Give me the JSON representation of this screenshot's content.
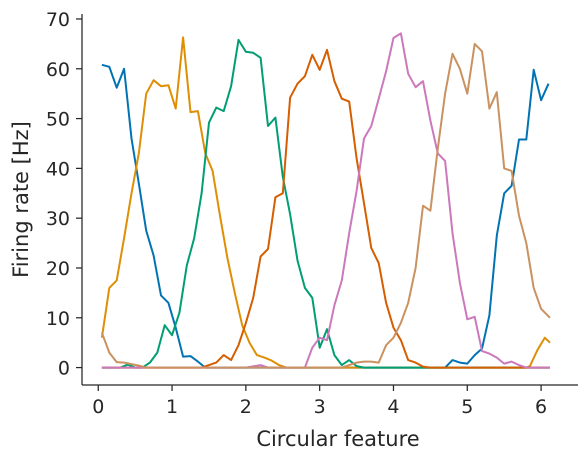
{
  "chart_data": {
    "type": "line",
    "title": "",
    "xlabel": "Circular feature",
    "ylabel": "Firing rate [Hz]",
    "xlim": [
      -0.22,
      6.5
    ],
    "ylim": [
      -3.5,
      71
    ],
    "xticks": [
      0,
      1,
      2,
      3,
      4,
      5,
      6
    ],
    "yticks": [
      0,
      10,
      20,
      30,
      40,
      50,
      60,
      70
    ],
    "grid": false,
    "legend": "none",
    "series": [
      {
        "color": "#0173b2",
        "points": [
          [
            0.05,
            60.8
          ],
          [
            0.15,
            60.4
          ],
          [
            0.25,
            56.2
          ],
          [
            0.35,
            60
          ],
          [
            0.45,
            46
          ],
          [
            0.55,
            37
          ],
          [
            0.65,
            27.5
          ],
          [
            0.75,
            22.5
          ],
          [
            0.85,
            14.5
          ],
          [
            0.95,
            13
          ],
          [
            1.05,
            8
          ],
          [
            1.15,
            2.2
          ],
          [
            1.25,
            2.3
          ],
          [
            1.35,
            1.2
          ],
          [
            1.45,
            0
          ],
          [
            1.6,
            0
          ],
          [
            2.0,
            0
          ],
          [
            3.0,
            0
          ],
          [
            4.0,
            0
          ],
          [
            4.7,
            0
          ],
          [
            4.8,
            1.5
          ],
          [
            4.9,
            1
          ],
          [
            5.0,
            0.8
          ],
          [
            5.1,
            2.5
          ],
          [
            5.2,
            3.8
          ],
          [
            5.3,
            10.5
          ],
          [
            5.4,
            26.5
          ],
          [
            5.5,
            35
          ],
          [
            5.6,
            36.5
          ],
          [
            5.7,
            45.8
          ],
          [
            5.8,
            45.8
          ],
          [
            5.9,
            59.8
          ],
          [
            6.0,
            53.7
          ],
          [
            6.1,
            57
          ]
        ]
      },
      {
        "color": "#de8f05",
        "points": [
          [
            0.05,
            6
          ],
          [
            0.15,
            16
          ],
          [
            0.25,
            17.5
          ],
          [
            0.35,
            26
          ],
          [
            0.45,
            35
          ],
          [
            0.55,
            43
          ],
          [
            0.65,
            55
          ],
          [
            0.75,
            57.7
          ],
          [
            0.85,
            56.5
          ],
          [
            0.95,
            56.7
          ],
          [
            1.05,
            52
          ],
          [
            1.15,
            66.3
          ],
          [
            1.25,
            51.3
          ],
          [
            1.35,
            51.5
          ],
          [
            1.45,
            43
          ],
          [
            1.55,
            39.5
          ],
          [
            1.65,
            30.5
          ],
          [
            1.75,
            22
          ],
          [
            1.85,
            15
          ],
          [
            1.95,
            8.5
          ],
          [
            2.05,
            5
          ],
          [
            2.15,
            2.5
          ],
          [
            2.25,
            2
          ],
          [
            2.35,
            1.4
          ],
          [
            2.45,
            0.5
          ],
          [
            2.55,
            0
          ],
          [
            3.0,
            0
          ],
          [
            4.0,
            0
          ],
          [
            5.0,
            0
          ],
          [
            5.8,
            0
          ],
          [
            5.85,
            0.3
          ],
          [
            5.95,
            3.5
          ],
          [
            6.05,
            6
          ],
          [
            6.12,
            5
          ]
        ]
      },
      {
        "color": "#029e73",
        "points": [
          [
            0.05,
            0
          ],
          [
            0.3,
            0
          ],
          [
            0.4,
            0.6
          ],
          [
            0.5,
            0
          ],
          [
            0.6,
            0
          ],
          [
            0.7,
            1
          ],
          [
            0.8,
            3
          ],
          [
            0.9,
            8.5
          ],
          [
            1.0,
            6.5
          ],
          [
            1.1,
            11
          ],
          [
            1.2,
            20.5
          ],
          [
            1.3,
            26
          ],
          [
            1.4,
            35
          ],
          [
            1.5,
            49.2
          ],
          [
            1.6,
            52.2
          ],
          [
            1.7,
            51.5
          ],
          [
            1.8,
            56.5
          ],
          [
            1.9,
            65.8
          ],
          [
            2.0,
            63.4
          ],
          [
            2.1,
            63.2
          ],
          [
            2.2,
            62.2
          ],
          [
            2.3,
            48.5
          ],
          [
            2.4,
            50.2
          ],
          [
            2.5,
            38.3
          ],
          [
            2.6,
            30.8
          ],
          [
            2.7,
            21.5
          ],
          [
            2.8,
            16
          ],
          [
            2.9,
            14
          ],
          [
            3.0,
            4
          ],
          [
            3.1,
            7.7
          ],
          [
            3.2,
            2.5
          ],
          [
            3.3,
            0.5
          ],
          [
            3.4,
            1.5
          ],
          [
            3.5,
            0.3
          ],
          [
            3.6,
            0
          ],
          [
            4.0,
            0
          ],
          [
            5.0,
            0
          ],
          [
            6.12,
            0
          ]
        ]
      },
      {
        "color": "#d55e00",
        "points": [
          [
            0.05,
            0
          ],
          [
            1.0,
            0
          ],
          [
            1.4,
            0
          ],
          [
            1.5,
            0.5
          ],
          [
            1.6,
            1
          ],
          [
            1.7,
            2.5
          ],
          [
            1.8,
            1.5
          ],
          [
            1.9,
            4.5
          ],
          [
            2.0,
            9
          ],
          [
            2.1,
            14
          ],
          [
            2.2,
            22.3
          ],
          [
            2.3,
            23.8
          ],
          [
            2.4,
            34.2
          ],
          [
            2.5,
            35
          ],
          [
            2.6,
            54.2
          ],
          [
            2.7,
            57
          ],
          [
            2.8,
            58.5
          ],
          [
            2.9,
            62.8
          ],
          [
            3.0,
            59.8
          ],
          [
            3.1,
            63.8
          ],
          [
            3.2,
            57.5
          ],
          [
            3.3,
            54
          ],
          [
            3.4,
            53.4
          ],
          [
            3.5,
            42
          ],
          [
            3.6,
            33
          ],
          [
            3.7,
            24
          ],
          [
            3.8,
            21
          ],
          [
            3.9,
            13
          ],
          [
            4.0,
            8
          ],
          [
            4.1,
            5.5
          ],
          [
            4.2,
            1.5
          ],
          [
            4.3,
            1
          ],
          [
            4.4,
            0.2
          ],
          [
            4.5,
            0
          ],
          [
            5.0,
            0
          ],
          [
            6.12,
            0
          ]
        ]
      },
      {
        "color": "#cc78bc",
        "points": [
          [
            0.05,
            0
          ],
          [
            1.0,
            0
          ],
          [
            2.0,
            0
          ],
          [
            2.2,
            0.5
          ],
          [
            2.3,
            0
          ],
          [
            2.8,
            0
          ],
          [
            2.9,
            4
          ],
          [
            3.0,
            6
          ],
          [
            3.1,
            5.5
          ],
          [
            3.2,
            12.5
          ],
          [
            3.3,
            17.5
          ],
          [
            3.4,
            27
          ],
          [
            3.5,
            35.5
          ],
          [
            3.6,
            46
          ],
          [
            3.7,
            48.5
          ],
          [
            3.8,
            54
          ],
          [
            3.9,
            59.5
          ],
          [
            4.0,
            66.2
          ],
          [
            4.1,
            67.1
          ],
          [
            4.2,
            59
          ],
          [
            4.3,
            56.3
          ],
          [
            4.4,
            57.5
          ],
          [
            4.5,
            49.6
          ],
          [
            4.6,
            43
          ],
          [
            4.7,
            41.5
          ],
          [
            4.8,
            27
          ],
          [
            4.9,
            17
          ],
          [
            5.0,
            9.7
          ],
          [
            5.1,
            10.2
          ],
          [
            5.2,
            3.3
          ],
          [
            5.3,
            2.8
          ],
          [
            5.4,
            2
          ],
          [
            5.5,
            0.8
          ],
          [
            5.6,
            1.2
          ],
          [
            5.7,
            0.5
          ],
          [
            5.8,
            0
          ],
          [
            6.12,
            0
          ]
        ]
      },
      {
        "color": "#ca9161",
        "points": [
          [
            0.05,
            7
          ],
          [
            0.15,
            3
          ],
          [
            0.25,
            1.1
          ],
          [
            0.35,
            1
          ],
          [
            0.45,
            0.7
          ],
          [
            0.55,
            0.4
          ],
          [
            0.65,
            0
          ],
          [
            1.0,
            0
          ],
          [
            2.0,
            0
          ],
          [
            3.0,
            0
          ],
          [
            3.3,
            0
          ],
          [
            3.4,
            0.5
          ],
          [
            3.5,
            1
          ],
          [
            3.6,
            1.2
          ],
          [
            3.7,
            1.2
          ],
          [
            3.8,
            1
          ],
          [
            3.9,
            4.5
          ],
          [
            4.0,
            6
          ],
          [
            4.1,
            9
          ],
          [
            4.2,
            13
          ],
          [
            4.3,
            20
          ],
          [
            4.4,
            32.5
          ],
          [
            4.5,
            31.5
          ],
          [
            4.6,
            44
          ],
          [
            4.7,
            55
          ],
          [
            4.8,
            63
          ],
          [
            4.9,
            60
          ],
          [
            5.0,
            55
          ],
          [
            5.1,
            65
          ],
          [
            5.2,
            63.5
          ],
          [
            5.3,
            52
          ],
          [
            5.4,
            55.3
          ],
          [
            5.5,
            40
          ],
          [
            5.6,
            39.5
          ],
          [
            5.7,
            30.5
          ],
          [
            5.8,
            25
          ],
          [
            5.9,
            16
          ],
          [
            6.0,
            11.8
          ],
          [
            6.12,
            10
          ]
        ]
      }
    ]
  }
}
